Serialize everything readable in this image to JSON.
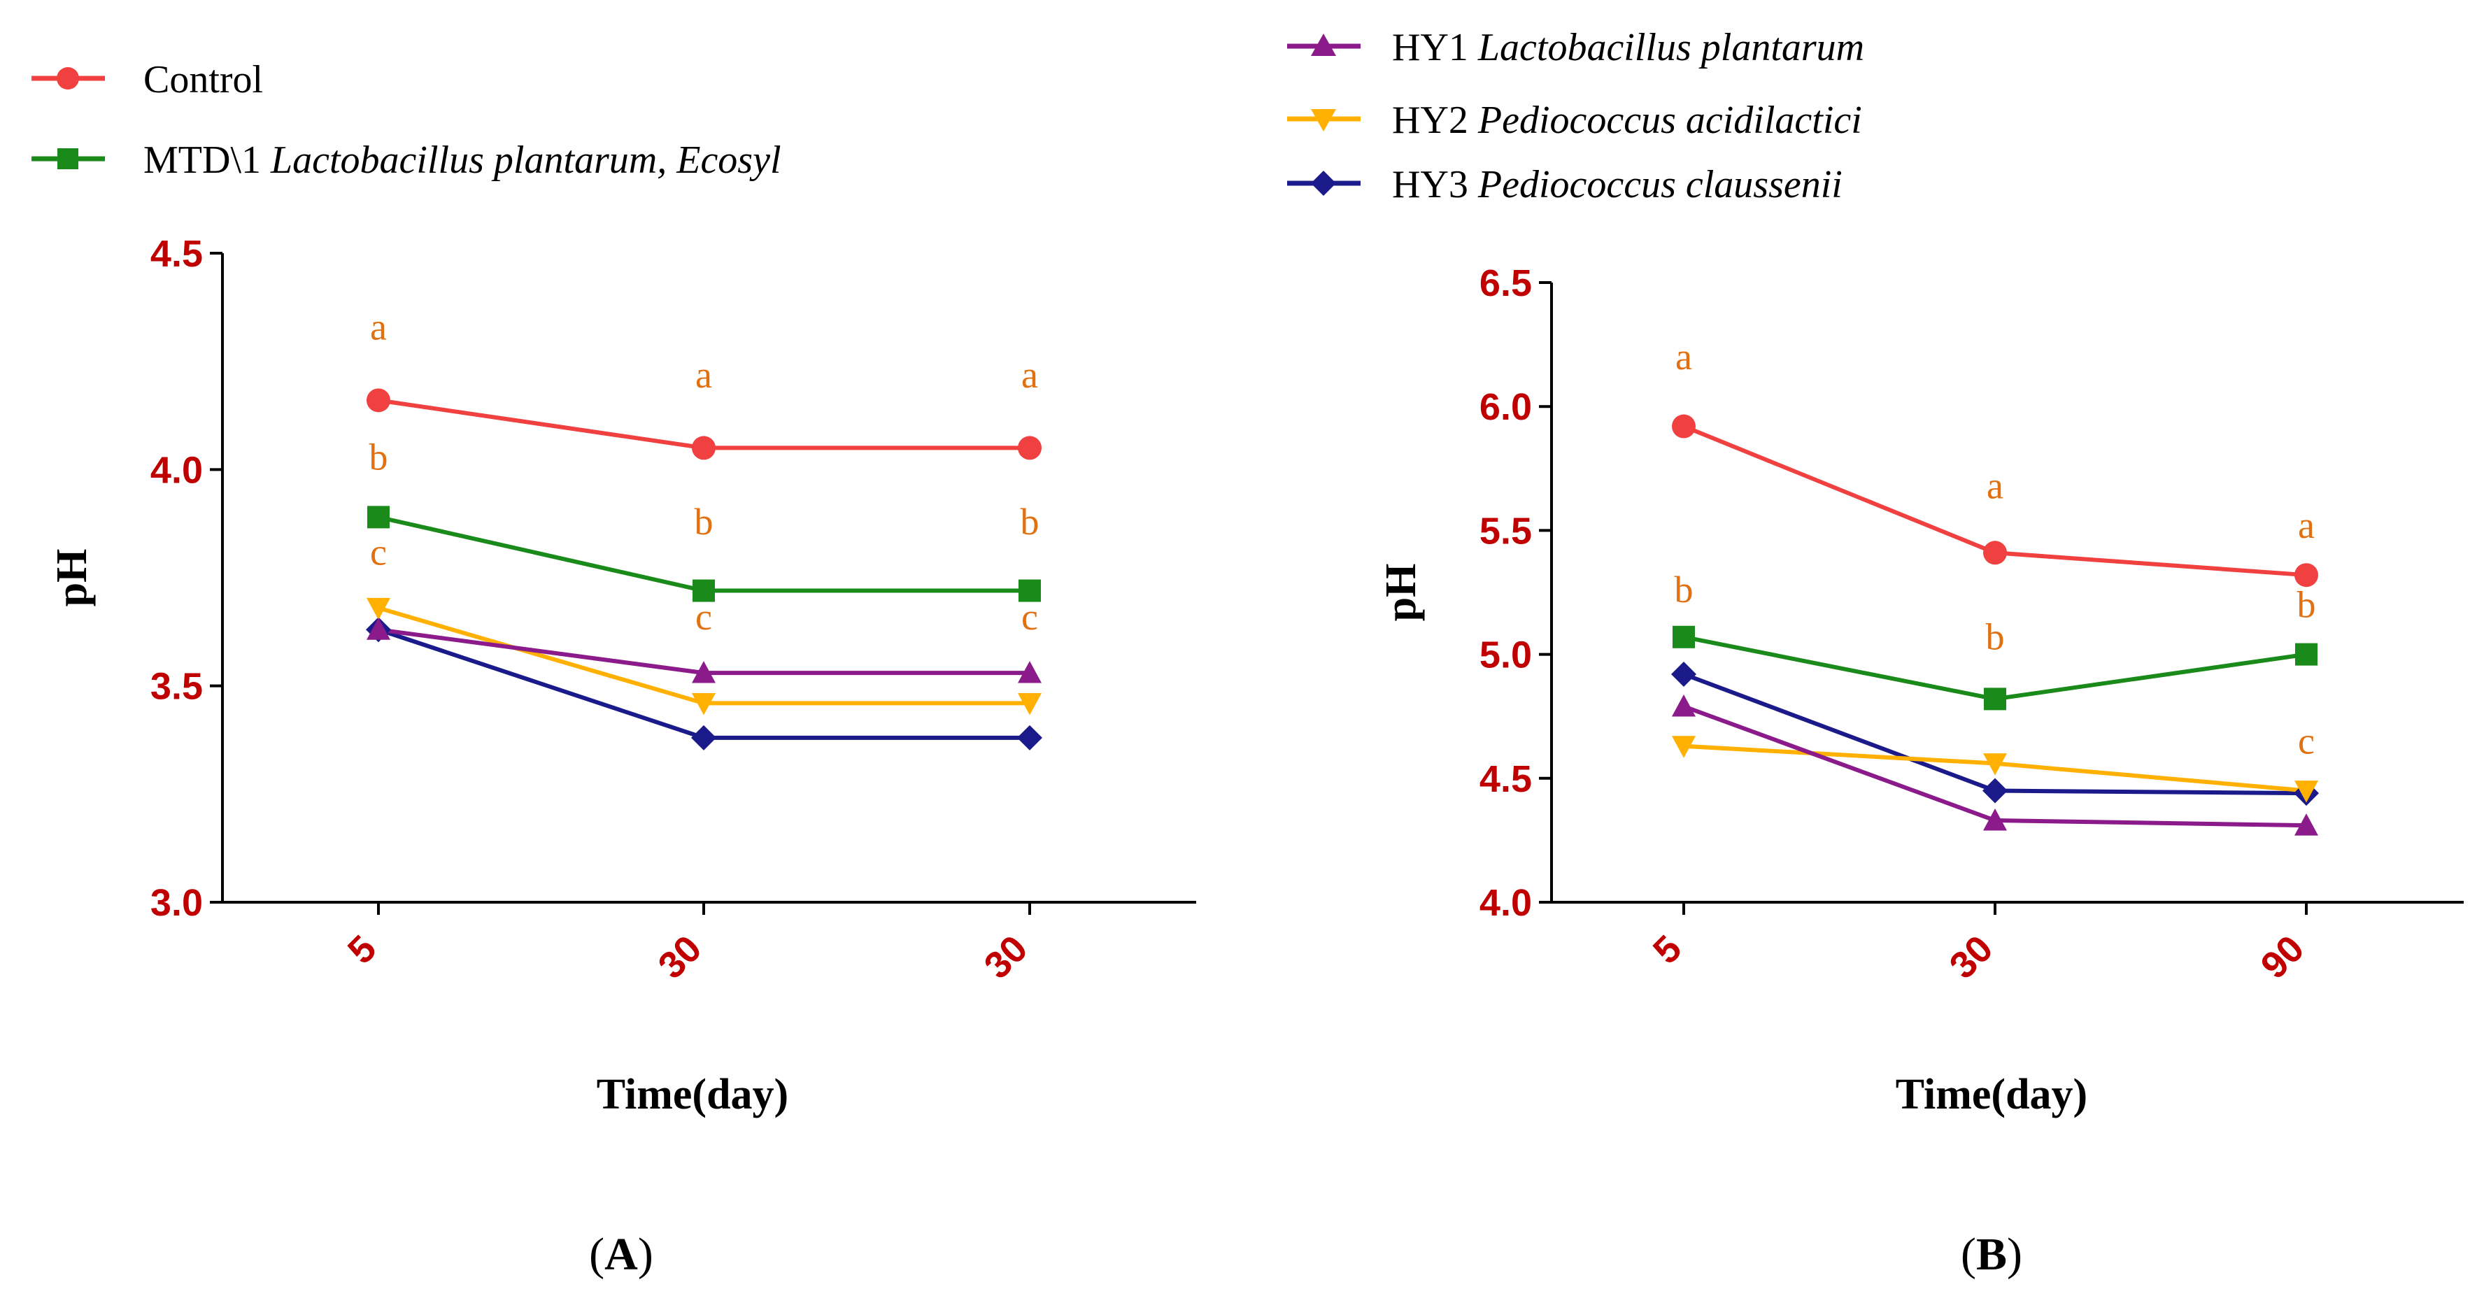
{
  "legend_left": [
    {
      "series": "Control",
      "text": "Control",
      "species": ""
    },
    {
      "series": "MTD1",
      "text": "MTD\\1 ",
      "species": "Lactobacillus plantarum, Ecosyl"
    }
  ],
  "legend_right": [
    {
      "series": "HY1",
      "text": "HY1 ",
      "species": "Lactobacillus plantarum"
    },
    {
      "series": "HY2",
      "text": "HY2 ",
      "species": "Pediococcus acidilactici"
    },
    {
      "series": "HY3",
      "text": "HY3 ",
      "species": "Pediococcus claussenii"
    }
  ],
  "colors": {
    "Control": "#f04040",
    "MTD1": "#1a8a1a",
    "HY1": "#8b1a8b",
    "HY2": "#ffb000",
    "HY3": "#1a1a8a",
    "tick": "#c00000",
    "sig": "#e07010"
  },
  "markers": {
    "Control": "circle",
    "MTD1": "square",
    "HY1": "triangle-up",
    "HY2": "triangle-down",
    "HY3": "diamond"
  },
  "chart_data": [
    {
      "id": "A",
      "type": "line",
      "panel_label": {
        "open": "(",
        "letter": "A",
        "close": ")"
      },
      "categories": [
        "5",
        "30",
        "30"
      ],
      "xlabel": "Time(day)",
      "ylabel": "pH",
      "ylim": [
        3.0,
        4.5
      ],
      "yticks": [
        "3.0",
        "3.5",
        "4.0",
        "4.5"
      ],
      "series": [
        {
          "name": "Control",
          "values": [
            4.16,
            4.05,
            4.05
          ]
        },
        {
          "name": "MTD1",
          "values": [
            3.89,
            3.72,
            3.72
          ]
        },
        {
          "name": "HY1",
          "values": [
            3.63,
            3.53,
            3.53
          ]
        },
        {
          "name": "HY2",
          "values": [
            3.68,
            3.46,
            3.46
          ]
        },
        {
          "name": "HY3",
          "values": [
            3.63,
            3.38,
            3.38
          ]
        }
      ],
      "annotations": [
        {
          "text": "a",
          "x": 0,
          "y": 4.3
        },
        {
          "text": "a",
          "x": 1,
          "y": 4.19
        },
        {
          "text": "a",
          "x": 2,
          "y": 4.19
        },
        {
          "text": "b",
          "x": 0,
          "y": 4.0
        },
        {
          "text": "b",
          "x": 1,
          "y": 3.85
        },
        {
          "text": "b",
          "x": 2,
          "y": 3.85
        },
        {
          "text": "c",
          "x": 0,
          "y": 3.78
        },
        {
          "text": "c",
          "x": 1,
          "y": 3.63
        },
        {
          "text": "c",
          "x": 2,
          "y": 3.63
        }
      ]
    },
    {
      "id": "B",
      "type": "line",
      "panel_label": {
        "open": "(",
        "letter": "B",
        "close": ")"
      },
      "categories": [
        "5",
        "30",
        "90"
      ],
      "xlabel": "Time(day)",
      "ylabel": "pH",
      "ylim": [
        4.0,
        6.5
      ],
      "yticks": [
        "4.0",
        "4.5",
        "5.0",
        "5.5",
        "6.0",
        "6.5"
      ],
      "series": [
        {
          "name": "Control",
          "values": [
            5.92,
            5.41,
            5.32
          ]
        },
        {
          "name": "MTD1",
          "values": [
            5.07,
            4.82,
            5.0
          ]
        },
        {
          "name": "HY1",
          "values": [
            4.79,
            4.33,
            4.31
          ]
        },
        {
          "name": "HY2",
          "values": [
            4.63,
            4.56,
            4.45
          ]
        },
        {
          "name": "HY3",
          "values": [
            4.92,
            4.45,
            4.44
          ]
        }
      ],
      "annotations": [
        {
          "text": "a",
          "x": 0,
          "y": 6.15
        },
        {
          "text": "a",
          "x": 1,
          "y": 5.63
        },
        {
          "text": "a",
          "x": 2,
          "y": 5.47
        },
        {
          "text": "b",
          "x": 0,
          "y": 5.21
        },
        {
          "text": "b",
          "x": 1,
          "y": 5.02
        },
        {
          "text": "b",
          "x": 2,
          "y": 5.15
        },
        {
          "text": "c",
          "x": 2,
          "y": 4.6
        }
      ]
    }
  ]
}
